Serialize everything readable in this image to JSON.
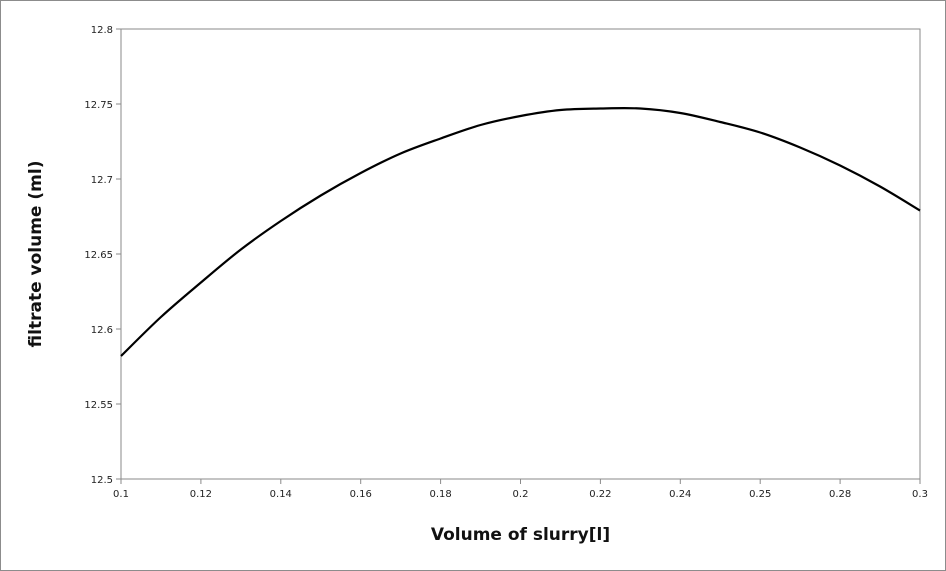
{
  "chart_data": {
    "type": "line",
    "title": "",
    "xlabel": "Volume of slurry[l]",
    "ylabel": "filtrate volume (ml)",
    "xlim": [
      0.1,
      0.3
    ],
    "ylim": [
      12.5,
      12.8
    ],
    "x_ticks": [
      "0.1",
      "0.12",
      "0.14",
      "0.16",
      "0.18",
      "0.2",
      "0.22",
      "0.24",
      "0.25",
      "0.28",
      "0.3"
    ],
    "y_ticks": [
      "12.5",
      "12.55",
      "12.6",
      "12.65",
      "12.7",
      "12.75",
      "12.8"
    ],
    "grid": false,
    "legend": "none",
    "line_color": "#000000",
    "series": [
      {
        "x": [
          0.1,
          0.11,
          0.12,
          0.13,
          0.14,
          0.15,
          0.16,
          0.17,
          0.18,
          0.19,
          0.2,
          0.21,
          0.22,
          0.23,
          0.24,
          0.25,
          0.26,
          0.27,
          0.28,
          0.29,
          0.3
        ],
        "values": [
          12.582,
          12.608,
          12.631,
          12.653,
          12.672,
          12.689,
          12.704,
          12.717,
          12.727,
          12.736,
          12.742,
          12.746,
          12.747,
          12.747,
          12.744,
          12.738,
          12.731,
          12.721,
          12.709,
          12.695,
          12.679
        ]
      }
    ]
  }
}
